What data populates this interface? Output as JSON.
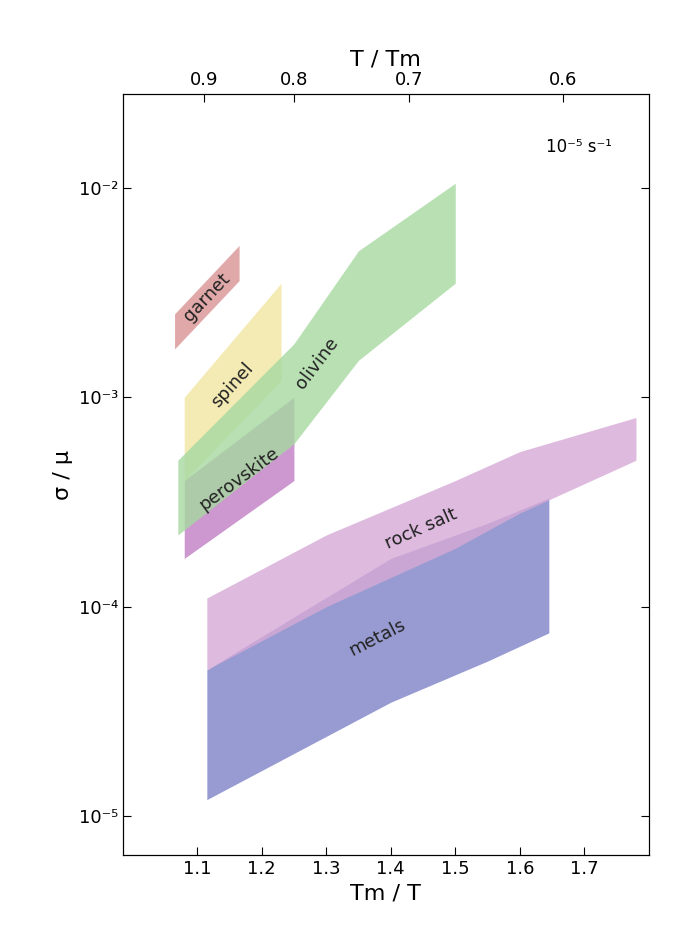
{
  "chart_data": {
    "type": "band",
    "xlabel": "Tm / T",
    "ylabel": "σ / μ",
    "x2label": "T / Tm",
    "annotation": "10⁻⁵ s⁻¹",
    "log": "y",
    "xlim": [
      0.985,
      1.8
    ],
    "xticks": [
      1.1,
      1.2,
      1.3,
      1.4,
      1.5,
      1.6,
      1.7
    ],
    "x2ticks": [
      0.9,
      0.8,
      0.7,
      0.6
    ],
    "ylim": [
      6.5e-06,
      0.028
    ],
    "yticks": [
      {
        "value": 1e-05,
        "label": "10⁻⁵"
      },
      {
        "value": 0.0001,
        "label": "10⁻⁴"
      },
      {
        "value": 0.001,
        "label": "10⁻³"
      },
      {
        "value": 0.01,
        "label": "10⁻²"
      }
    ],
    "series": [
      {
        "name": "metals",
        "color": "#7f82c6",
        "x": [
          1.115,
          1.4,
          1.55,
          1.645
        ],
        "lower": [
          1.2e-05,
          3.5e-05,
          5.5e-05,
          7.5e-05
        ],
        "upper": [
          5e-05,
          0.00017,
          0.00025,
          0.00033
        ]
      },
      {
        "name": "rock salt",
        "color": "#d6a9d6",
        "x": [
          1.115,
          1.3,
          1.5,
          1.6,
          1.78
        ],
        "lower": [
          5e-05,
          0.0001,
          0.00019,
          0.00028,
          0.0005
        ],
        "upper": [
          0.00011,
          0.00022,
          0.0004,
          0.00055,
          0.0008
        ]
      },
      {
        "name": "perovskite",
        "color": "#c07fc4",
        "x": [
          1.08,
          1.25
        ],
        "lower": [
          0.00017,
          0.0004
        ],
        "upper": [
          0.0004,
          0.001
        ]
      },
      {
        "name": "spinel",
        "color": "#f2e6a2",
        "x": [
          1.08,
          1.23
        ],
        "lower": [
          0.0004,
          0.0012
        ],
        "upper": [
          0.001,
          0.0035
        ]
      },
      {
        "name": "olivine",
        "color": "#a6d9a0",
        "x": [
          1.07,
          1.25,
          1.35,
          1.5
        ],
        "lower": [
          0.00022,
          0.0006,
          0.0015,
          0.0035
        ],
        "upper": [
          0.0005,
          0.0018,
          0.005,
          0.0105
        ]
      },
      {
        "name": "garnet",
        "color": "#d99393",
        "x": [
          1.065,
          1.165
        ],
        "lower": [
          0.0017,
          0.0036
        ],
        "upper": [
          0.0025,
          0.0053
        ]
      }
    ]
  }
}
